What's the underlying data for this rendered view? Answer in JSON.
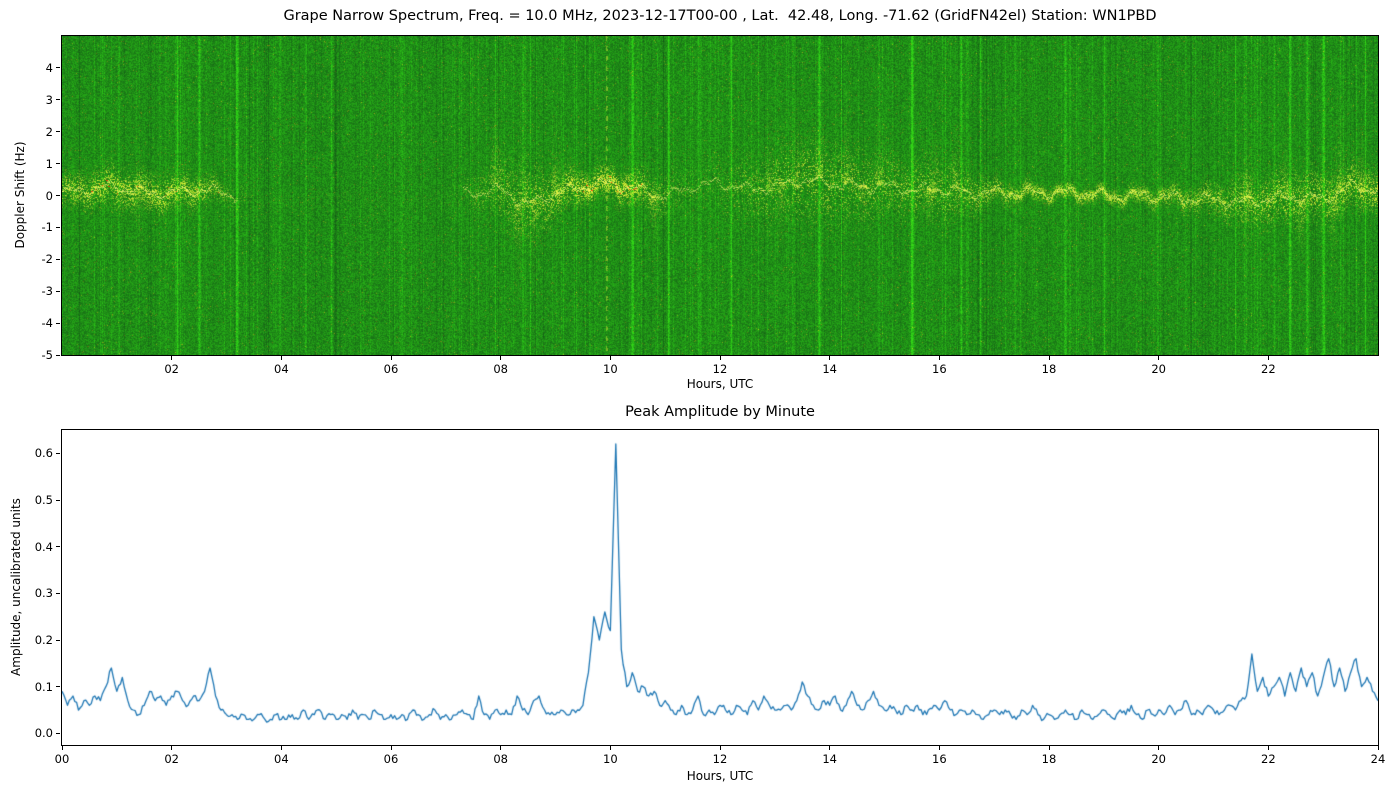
{
  "page": {
    "background": "#ffffff"
  },
  "chart_data": [
    {
      "type": "heatmap",
      "title": "Grape Narrow Spectrum, Freq. = 10.0 MHz, 2023-12-17T00-00 , Lat.  42.48, Long. -71.62 (GridFN42el) Station: WN1PBD",
      "xlabel": "Hours, UTC",
      "ylabel": "Doppler Shift (Hz)",
      "xlim": [
        0,
        24
      ],
      "ylim": [
        -5,
        5
      ],
      "xtick_values": [
        2,
        4,
        6,
        8,
        10,
        12,
        14,
        16,
        18,
        20,
        22
      ],
      "xtick_labels": [
        "02",
        "04",
        "06",
        "08",
        "10",
        "12",
        "14",
        "16",
        "18",
        "20",
        "22"
      ],
      "ytick_values": [
        4,
        3,
        2,
        1,
        0,
        -1,
        -2,
        -3,
        -4,
        -5
      ],
      "ytick_labels": [
        "4",
        "3",
        "2",
        "1",
        "0",
        "-1",
        "-2",
        "-3",
        "-4",
        "-5"
      ],
      "colors": {
        "background_green": "#2d8f2d",
        "signal_yellow": "#fcff3c",
        "hot_red": "#ff2d00"
      },
      "trace": {
        "hour_step": 0.5,
        "center_hz": [
          0.1,
          0.2,
          0.3,
          0.1,
          0.1,
          0.2,
          0.1,
          -0.2,
          -0.3,
          -0.2,
          0.0,
          -0.1,
          -0.2,
          -0.1,
          0.0,
          0.1,
          0.2,
          -0.3,
          0.1,
          0.3,
          0.4,
          0.2,
          0.0,
          0.3,
          0.4,
          0.2,
          0.3,
          0.5,
          0.4,
          0.3,
          0.3,
          0.2,
          0.2,
          0.1,
          0.1,
          0.1,
          0.1,
          0.1,
          0.0,
          0.0,
          0.0,
          -0.1,
          -0.1,
          -0.2,
          -0.1,
          0.0,
          -0.1,
          0.3,
          0.2
        ],
        "spread_hz": [
          0.5,
          0.6,
          0.7,
          0.6,
          0.6,
          0.5,
          0.4,
          0.5,
          0.5,
          0.4,
          0.4,
          0.5,
          0.4,
          0.4,
          0.5,
          0.8,
          1.2,
          1.4,
          0.8,
          0.5,
          0.5,
          0.6,
          0.8,
          1.0,
          1.2,
          1.2,
          1.5,
          1.6,
          1.5,
          1.4,
          1.2,
          1.0,
          1.2,
          0.8,
          0.4,
          0.3,
          0.25,
          0.25,
          0.25,
          0.3,
          0.3,
          0.4,
          0.5,
          0.8,
          0.9,
          1.0,
          0.9,
          0.8,
          0.7
        ],
        "intensity": [
          0.8,
          0.9,
          0.9,
          0.9,
          0.9,
          0.9,
          0.4,
          0.15,
          0.12,
          0.12,
          0.15,
          0.15,
          0.12,
          0.12,
          0.15,
          0.4,
          0.7,
          0.8,
          0.85,
          1.0,
          1.0,
          0.9,
          0.5,
          0.3,
          0.4,
          0.6,
          0.7,
          0.8,
          0.8,
          0.7,
          0.7,
          0.7,
          0.7,
          0.7,
          0.7,
          0.7,
          0.7,
          0.7,
          0.7,
          0.7,
          0.7,
          0.7,
          0.7,
          0.8,
          0.85,
          0.85,
          0.85,
          0.9,
          0.9
        ]
      },
      "red_segments": [
        [
          0.5,
          2.9,
          0.22
        ],
        [
          9.4,
          10.6,
          0.6
        ]
      ],
      "streak_hours": [
        0.9,
        2.1,
        2.5,
        3.2,
        4.9,
        6.2,
        7.9,
        8.4,
        9.1,
        10.4,
        11.05,
        11.6,
        12.2,
        12.7,
        13.0,
        13.8,
        14.2,
        14.9,
        15.5,
        16.1,
        16.4,
        17.2,
        18.3,
        19.0,
        19.9,
        20.6,
        21.0,
        21.4,
        21.8,
        22.1,
        22.4,
        22.7,
        23.0,
        23.3,
        23.6
      ],
      "dashed_streak_hour": 9.93,
      "plumes_up": [
        [
          7.9,
          3.5
        ],
        [
          8.4,
          4.5
        ],
        [
          9.0,
          2.5
        ],
        [
          12.9,
          2.5
        ],
        [
          13.4,
          3.0
        ],
        [
          13.8,
          2.5
        ],
        [
          14.3,
          3.0
        ],
        [
          14.9,
          2.2
        ],
        [
          15.9,
          1.8
        ],
        [
          16.3,
          2.0
        ],
        [
          21.6,
          2.0
        ],
        [
          22.3,
          2.5
        ],
        [
          23.3,
          3.0
        ],
        [
          23.7,
          2.0
        ]
      ],
      "plumes_down": [
        [
          1.4,
          2.0
        ],
        [
          8.3,
          3.0
        ],
        [
          8.6,
          2.5
        ],
        [
          10.8,
          1.5
        ],
        [
          13.1,
          2.0
        ],
        [
          14.6,
          1.5
        ],
        [
          15.8,
          1.2
        ],
        [
          21.6,
          2.5
        ],
        [
          22.6,
          2.0
        ],
        [
          23.2,
          2.5
        ]
      ]
    },
    {
      "type": "line",
      "title": "Peak Amplitude by Minute",
      "xlabel": "Hours, UTC",
      "ylabel": "Amplitude, uncalibrated units",
      "xlim": [
        0,
        24
      ],
      "ylim": [
        -0.025,
        0.65
      ],
      "xtick_values": [
        0,
        2,
        4,
        6,
        8,
        10,
        12,
        14,
        16,
        18,
        20,
        22,
        24
      ],
      "xtick_labels": [
        "00",
        "02",
        "04",
        "06",
        "08",
        "10",
        "12",
        "14",
        "16",
        "18",
        "20",
        "22",
        "24"
      ],
      "ytick_values": [
        0.0,
        0.1,
        0.2,
        0.3,
        0.4,
        0.5,
        0.6
      ],
      "ytick_labels": [
        "0.0",
        "0.1",
        "0.2",
        "0.3",
        "0.4",
        "0.5",
        "0.6"
      ],
      "line_color": "#1f77b4",
      "x_start": 0,
      "x_step_hours": 0.1,
      "values": [
        0.09,
        0.06,
        0.08,
        0.05,
        0.07,
        0.06,
        0.08,
        0.07,
        0.1,
        0.14,
        0.09,
        0.12,
        0.07,
        0.05,
        0.04,
        0.06,
        0.09,
        0.07,
        0.08,
        0.06,
        0.08,
        0.09,
        0.07,
        0.06,
        0.08,
        0.07,
        0.09,
        0.14,
        0.08,
        0.05,
        0.04,
        0.04,
        0.03,
        0.04,
        0.03,
        0.03,
        0.04,
        0.03,
        0.03,
        0.04,
        0.03,
        0.03,
        0.04,
        0.03,
        0.05,
        0.03,
        0.04,
        0.05,
        0.03,
        0.04,
        0.03,
        0.04,
        0.03,
        0.05,
        0.03,
        0.04,
        0.03,
        0.05,
        0.04,
        0.03,
        0.04,
        0.03,
        0.04,
        0.03,
        0.05,
        0.04,
        0.03,
        0.04,
        0.05,
        0.03,
        0.04,
        0.03,
        0.04,
        0.05,
        0.04,
        0.03,
        0.08,
        0.04,
        0.03,
        0.05,
        0.04,
        0.05,
        0.04,
        0.08,
        0.05,
        0.04,
        0.07,
        0.08,
        0.05,
        0.04,
        0.04,
        0.05,
        0.04,
        0.05,
        0.05,
        0.06,
        0.13,
        0.25,
        0.2,
        0.26,
        0.22,
        0.62,
        0.18,
        0.1,
        0.13,
        0.09,
        0.1,
        0.08,
        0.09,
        0.06,
        0.07,
        0.05,
        0.04,
        0.06,
        0.04,
        0.05,
        0.08,
        0.04,
        0.05,
        0.04,
        0.06,
        0.05,
        0.04,
        0.06,
        0.05,
        0.04,
        0.07,
        0.05,
        0.08,
        0.06,
        0.05,
        0.05,
        0.06,
        0.05,
        0.07,
        0.11,
        0.08,
        0.06,
        0.05,
        0.07,
        0.06,
        0.08,
        0.05,
        0.06,
        0.09,
        0.06,
        0.05,
        0.07,
        0.09,
        0.06,
        0.05,
        0.06,
        0.05,
        0.04,
        0.06,
        0.05,
        0.06,
        0.04,
        0.05,
        0.06,
        0.05,
        0.07,
        0.05,
        0.04,
        0.05,
        0.04,
        0.05,
        0.04,
        0.03,
        0.04,
        0.05,
        0.04,
        0.05,
        0.04,
        0.03,
        0.05,
        0.04,
        0.06,
        0.04,
        0.03,
        0.04,
        0.03,
        0.04,
        0.05,
        0.04,
        0.03,
        0.05,
        0.04,
        0.03,
        0.04,
        0.05,
        0.04,
        0.03,
        0.05,
        0.04,
        0.06,
        0.04,
        0.03,
        0.05,
        0.04,
        0.05,
        0.04,
        0.06,
        0.04,
        0.05,
        0.07,
        0.04,
        0.05,
        0.04,
        0.06,
        0.05,
        0.04,
        0.05,
        0.06,
        0.05,
        0.07,
        0.08,
        0.17,
        0.09,
        0.12,
        0.08,
        0.1,
        0.12,
        0.08,
        0.13,
        0.09,
        0.14,
        0.1,
        0.13,
        0.08,
        0.12,
        0.16,
        0.1,
        0.14,
        0.09,
        0.13,
        0.16,
        0.1,
        0.12,
        0.09,
        0.07
      ]
    }
  ]
}
